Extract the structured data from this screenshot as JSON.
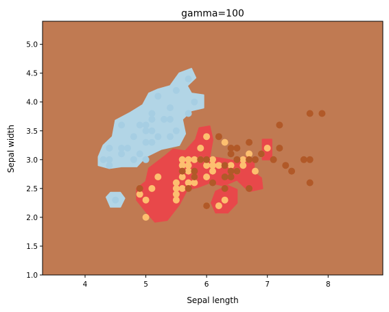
{
  "chart_data": {
    "type": "scatter",
    "title": "gamma=100",
    "xlabel": "Sepal length",
    "ylabel": "Sepal width",
    "xlim": [
      3.3,
      8.9
    ],
    "ylim": [
      1.0,
      5.4
    ],
    "x_ticks": [
      4,
      5,
      6,
      7,
      8
    ],
    "y_ticks": [
      1.0,
      1.5,
      2.0,
      2.5,
      3.0,
      3.5,
      4.0,
      4.5,
      5.0
    ],
    "grid": false,
    "colors": {
      "background_region": "#c07a52",
      "class0_region": "#b2d5e6",
      "class1_region": "#e8484a",
      "class0_point": "#a6cee3",
      "class1_point": "#fdbf6f",
      "class2_point": "#b15928"
    },
    "regions": {
      "class0": [
        [
          4.22,
          3.05
        ],
        [
          4.3,
          3.25
        ],
        [
          4.45,
          3.4
        ],
        [
          4.5,
          3.68
        ],
        [
          4.75,
          3.82
        ],
        [
          4.95,
          3.95
        ],
        [
          5.05,
          4.15
        ],
        [
          5.2,
          4.22
        ],
        [
          5.4,
          4.28
        ],
        [
          5.55,
          4.5
        ],
        [
          5.75,
          4.58
        ],
        [
          5.82,
          4.42
        ],
        [
          5.68,
          4.28
        ],
        [
          5.75,
          4.15
        ],
        [
          5.95,
          4.12
        ],
        [
          5.95,
          3.9
        ],
        [
          5.75,
          3.85
        ],
        [
          5.6,
          3.7
        ],
        [
          5.65,
          3.45
        ],
        [
          5.55,
          3.25
        ],
        [
          5.25,
          3.18
        ],
        [
          5.0,
          3.05
        ],
        [
          4.85,
          2.88
        ],
        [
          4.6,
          2.88
        ],
        [
          4.4,
          2.85
        ],
        [
          4.22,
          2.9
        ]
      ],
      "class0_small": [
        [
          4.35,
          2.35
        ],
        [
          4.42,
          2.43
        ],
        [
          4.58,
          2.43
        ],
        [
          4.65,
          2.33
        ],
        [
          4.58,
          2.18
        ],
        [
          4.42,
          2.18
        ]
      ],
      "class1": [
        [
          4.85,
          2.3
        ],
        [
          4.85,
          2.5
        ],
        [
          5.0,
          2.62
        ],
        [
          5.05,
          2.85
        ],
        [
          5.3,
          3.05
        ],
        [
          5.45,
          3.18
        ],
        [
          5.65,
          3.15
        ],
        [
          5.82,
          3.35
        ],
        [
          5.88,
          3.55
        ],
        [
          6.05,
          3.58
        ],
        [
          6.1,
          3.35
        ],
        [
          6.05,
          3.05
        ],
        [
          6.25,
          3.02
        ],
        [
          6.45,
          2.98
        ],
        [
          6.62,
          3.05
        ],
        [
          6.78,
          2.95
        ],
        [
          6.78,
          2.78
        ],
        [
          6.9,
          2.68
        ],
        [
          6.92,
          2.5
        ],
        [
          6.7,
          2.45
        ],
        [
          6.5,
          2.65
        ],
        [
          6.28,
          2.55
        ],
        [
          6.05,
          2.6
        ],
        [
          5.85,
          2.52
        ],
        [
          5.68,
          2.48
        ],
        [
          5.55,
          2.22
        ],
        [
          5.35,
          1.95
        ],
        [
          5.15,
          1.92
        ],
        [
          5.0,
          2.1
        ]
      ],
      "class1_small1": [
        [
          6.08,
          2.25
        ],
        [
          6.15,
          2.45
        ],
        [
          6.35,
          2.55
        ],
        [
          6.5,
          2.48
        ],
        [
          6.5,
          2.25
        ],
        [
          6.35,
          2.08
        ],
        [
          6.15,
          2.08
        ]
      ],
      "class1_small2": [
        [
          6.92,
          3.0
        ],
        [
          6.92,
          3.35
        ],
        [
          7.07,
          3.35
        ],
        [
          7.07,
          3.0
        ]
      ]
    },
    "series": [
      {
        "class": 0,
        "x": [
          4.3,
          4.4,
          4.4,
          4.4,
          4.5,
          4.6,
          4.6,
          4.6,
          4.7,
          4.8,
          4.8,
          4.9,
          5.0,
          5.0,
          5.0,
          5.0,
          5.1,
          5.1,
          5.1,
          5.1,
          5.2,
          5.2,
          5.3,
          5.4,
          5.4,
          5.4,
          5.5,
          5.5,
          5.7,
          5.7,
          5.8,
          4.9,
          4.4
        ],
        "y": [
          3.0,
          2.9,
          3.0,
          3.2,
          2.3,
          3.1,
          3.2,
          3.6,
          3.2,
          3.0,
          3.4,
          3.1,
          3.0,
          3.3,
          3.5,
          3.6,
          3.5,
          3.7,
          3.8,
          3.3,
          3.4,
          4.1,
          3.7,
          3.4,
          3.9,
          3.7,
          3.5,
          4.2,
          3.8,
          4.4,
          4.0,
          3.6,
          3.2
        ]
      },
      {
        "class": 1,
        "x": [
          4.9,
          5.0,
          5.0,
          5.1,
          5.2,
          5.5,
          5.5,
          5.5,
          5.5,
          5.6,
          5.6,
          5.6,
          5.6,
          5.7,
          5.7,
          5.7,
          5.7,
          5.8,
          5.8,
          5.8,
          5.9,
          5.9,
          6.0,
          6.0,
          6.0,
          6.0,
          6.1,
          6.1,
          6.1,
          6.2,
          6.2,
          6.3,
          6.3,
          6.4,
          6.5,
          6.6,
          6.6,
          6.7,
          6.7,
          6.8,
          6.9,
          7.0
        ],
        "y": [
          2.4,
          2.0,
          2.3,
          2.5,
          2.7,
          2.3,
          2.4,
          2.5,
          2.6,
          2.5,
          2.7,
          2.9,
          3.0,
          2.6,
          2.8,
          2.9,
          3.0,
          2.6,
          2.7,
          3.0,
          3.0,
          3.2,
          2.2,
          2.7,
          2.9,
          3.4,
          2.8,
          2.9,
          3.0,
          2.2,
          2.9,
          2.3,
          3.3,
          2.9,
          2.8,
          2.9,
          3.0,
          3.0,
          3.1,
          2.8,
          3.1,
          3.2
        ]
      },
      {
        "class": 2,
        "x": [
          4.9,
          5.6,
          5.7,
          5.8,
          5.8,
          5.9,
          6.0,
          6.0,
          6.1,
          6.2,
          6.3,
          6.3,
          6.3,
          6.4,
          6.4,
          6.5,
          6.5,
          6.5,
          6.7,
          6.7,
          6.7,
          6.8,
          6.9,
          7.1,
          7.2,
          7.2,
          7.3,
          7.4,
          7.6,
          7.7,
          7.7,
          7.7,
          7.9,
          6.4,
          6.4
        ],
        "y": [
          2.5,
          2.8,
          2.5,
          2.7,
          2.8,
          3.0,
          2.2,
          3.0,
          2.6,
          3.4,
          2.5,
          2.7,
          2.9,
          2.7,
          3.2,
          3.0,
          3.2,
          2.8,
          2.5,
          3.0,
          3.3,
          3.0,
          3.1,
          3.0,
          3.2,
          3.6,
          2.9,
          2.8,
          3.0,
          2.6,
          3.8,
          3.0,
          3.8,
          3.1,
          2.8
        ]
      }
    ]
  }
}
